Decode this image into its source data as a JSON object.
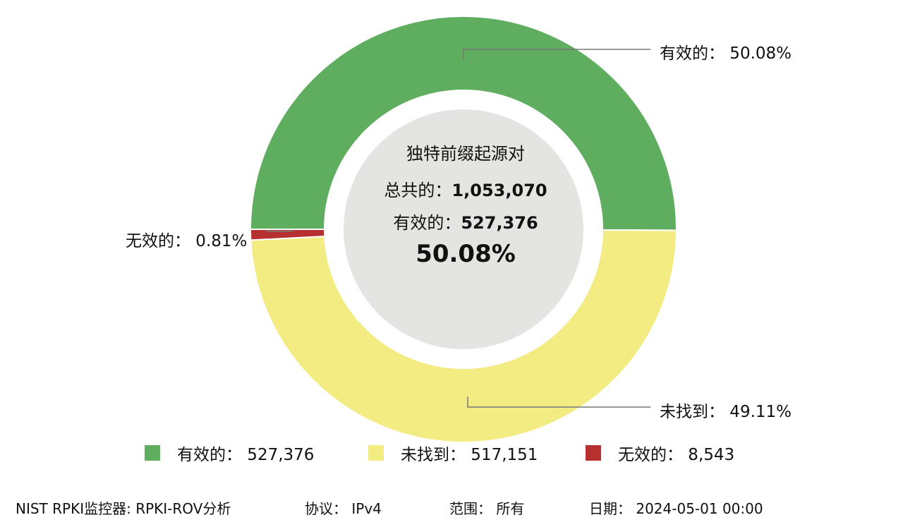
{
  "chart_data": {
    "type": "pie",
    "variant": "donut",
    "categories": [
      "有效的",
      "未找到",
      "无效的"
    ],
    "values": [
      527376,
      517151,
      8543
    ],
    "percentages": [
      50.08,
      49.11,
      0.81
    ],
    "colors": [
      "#5fad5f",
      "#f3ec82",
      "#b5302e"
    ],
    "center_color": "#e4e4e2",
    "legend_position": "bottom"
  },
  "center": {
    "title": "独特前缀起源对",
    "total_label": "总共的：",
    "total_value": "1,053,070",
    "valid_label": "有效的：",
    "valid_value": "527,376",
    "percent": "50.08%"
  },
  "callouts": {
    "valid": "有效的：  50.08%",
    "notfound": "未找到：  49.11%",
    "invalid": "无效的：  0.81%"
  },
  "legend": [
    {
      "label": "有效的：  527,376",
      "color": "#5fad5f"
    },
    {
      "label": "未找到：  517,151",
      "color": "#f3ec82"
    },
    {
      "label": "无效的：  8,543",
      "color": "#b5302e"
    }
  ],
  "footer": {
    "source": "NIST RPKI监控器: RPKI-ROV分析",
    "protocol": "协议：  IPv4",
    "scope": "范围：  所有",
    "date": "日期：  2024-05-01 00:00"
  }
}
